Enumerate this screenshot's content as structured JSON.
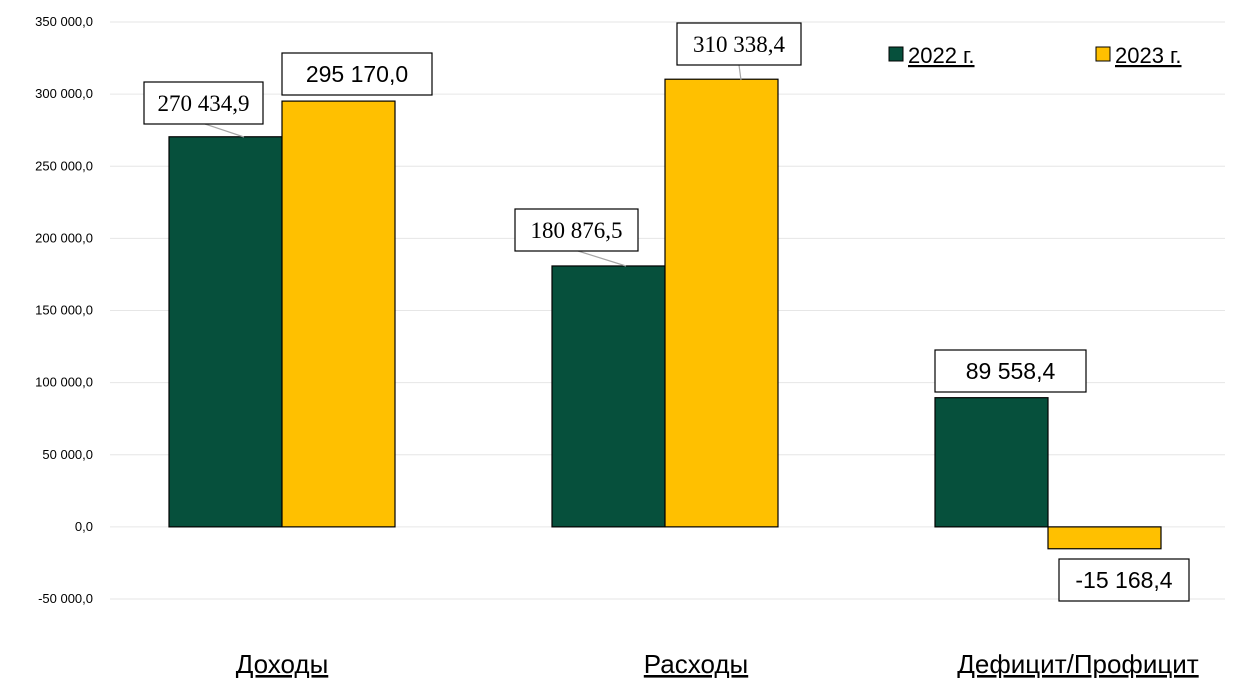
{
  "chart_data": {
    "type": "bar",
    "categories": [
      "Доходы",
      "Расходы",
      "Дефицит/Профицит"
    ],
    "series": [
      {
        "name": "2022 г.",
        "values": [
          270434.9,
          180876.5,
          89558.4
        ],
        "color": "#06503C",
        "labels": [
          "270 434,9",
          "180 876,5",
          "89 558,4"
        ]
      },
      {
        "name": "2023 г.",
        "values": [
          295170.0,
          310338.4,
          -15168.4
        ],
        "color": "#FFC000",
        "labels": [
          "295 170,0",
          "310 338,4",
          "-15 168,4"
        ]
      }
    ],
    "ylim": [
      -50000,
      350000
    ],
    "yticks": [
      350000,
      300000,
      250000,
      200000,
      150000,
      100000,
      50000,
      0,
      -50000
    ],
    "ytick_labels": [
      "350 000,0",
      "300 000,0",
      "250 000,0",
      "200 000,0",
      "150 000,0",
      "100 000,0",
      "50 000,0",
      "0,0",
      "-50 000,0"
    ],
    "grid": true,
    "legend_position": "top-right"
  }
}
